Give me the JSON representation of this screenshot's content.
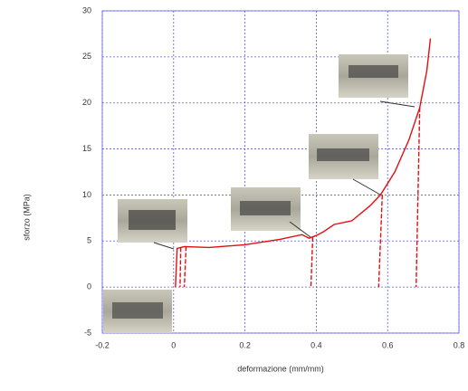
{
  "chart_data": {
    "type": "line",
    "x_label": "deformazione (mm/mm)",
    "y_label": "sforzo (MPa)",
    "xlim": [
      -0.2,
      0.8
    ],
    "xticks": [
      -0.2,
      0,
      0.2,
      0.4,
      0.6,
      0.8
    ],
    "ylim": [
      -5,
      30
    ],
    "yticks": [
      -5,
      0,
      5,
      10,
      15,
      20,
      25,
      30
    ],
    "grid": true,
    "series": [
      {
        "color": "#e01010",
        "style": "solid",
        "x": [
          0.005,
          0.01,
          0.03,
          0.1,
          0.2,
          0.3,
          0.36,
          0.38,
          0.4,
          0.42,
          0.45,
          0.5,
          0.55,
          0.58,
          0.62,
          0.66,
          0.69,
          0.71,
          0.72
        ],
        "values": [
          0,
          4.2,
          4.4,
          4.3,
          4.6,
          5.2,
          5.7,
          5.3,
          5.6,
          6,
          6.8,
          7.2,
          8.8,
          10,
          12.5,
          16,
          19.5,
          23.5,
          27
        ]
      },
      {
        "color": "#e01010",
        "style": "dashed",
        "x": [
          0.02,
          0.018
        ],
        "values": [
          4.3,
          0
        ]
      },
      {
        "color": "#e01010",
        "style": "dashed",
        "x": [
          0.035,
          0.03
        ],
        "values": [
          4.4,
          0
        ]
      },
      {
        "color": "#e01010",
        "style": "dashed",
        "x": [
          0.39,
          0.385
        ],
        "values": [
          5.4,
          0
        ]
      },
      {
        "color": "#e01010",
        "style": "dashed",
        "x": [
          0.585,
          0.575
        ],
        "values": [
          10,
          0
        ]
      },
      {
        "color": "#e01010",
        "style": "dashed",
        "x": [
          0.69,
          0.68
        ],
        "values": [
          19.5,
          0
        ]
      }
    ]
  }
}
